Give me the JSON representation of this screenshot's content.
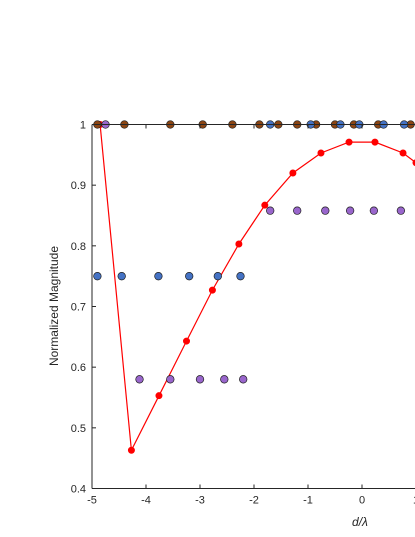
{
  "chart_data": {
    "type": "scatter",
    "title": "",
    "xlabel": "d/λ",
    "ylabel": "Normalized Magnitude",
    "xlim": [
      -5,
      1
    ],
    "ylim": [
      0.4,
      1
    ],
    "grid": false,
    "legend": "none",
    "x_ticks": [
      -5,
      -4,
      -3,
      -2,
      -1,
      0,
      1
    ],
    "y_ticks": [
      0.4,
      0.5,
      0.6,
      0.7,
      0.8,
      0.9,
      1
    ],
    "x_tick_labels": [
      "-5",
      "-4",
      "-3",
      "-2",
      "-1",
      "0",
      "1"
    ],
    "y_tick_labels": [
      "0.4",
      "0.5",
      "0.6",
      "0.7",
      "0.8",
      "0.9",
      "1"
    ],
    "series": [
      {
        "kind": "line-markers",
        "color": "#ff0000",
        "x": [
          -4.85,
          -4.27,
          -3.76,
          -3.25,
          -2.77,
          -2.28,
          -1.8,
          -1.28,
          -0.76,
          -0.24,
          0.24,
          0.76,
          1.0
        ],
        "y": [
          1.0,
          0.463,
          0.553,
          0.643,
          0.727,
          0.803,
          0.867,
          0.92,
          0.953,
          0.971,
          0.971,
          0.953,
          0.937
        ]
      },
      {
        "kind": "markers",
        "color": "#8b4513",
        "x": [
          -4.9,
          -4.4,
          -3.55,
          -2.95,
          -2.4,
          -1.9,
          -1.55,
          -1.2,
          -0.85,
          -0.5,
          -0.15,
          0.3,
          0.9
        ],
        "y": [
          1,
          1,
          1,
          1,
          1,
          1,
          1,
          1,
          1,
          1,
          1,
          1,
          1
        ]
      },
      {
        "kind": "markers",
        "color": "#4472c4",
        "x": [
          -4.9,
          -4.45,
          -3.77,
          -3.2,
          -2.67,
          -2.25,
          -1.7,
          -0.95,
          -0.4,
          -0.05,
          0.4,
          0.78
        ],
        "y": [
          0.75,
          0.75,
          0.75,
          0.75,
          0.75,
          0.75,
          1,
          1,
          1,
          1,
          1,
          1
        ]
      },
      {
        "kind": "markers",
        "color": "#9966cc",
        "x": [
          -4.75,
          -4.12,
          -3.55,
          -3.0,
          -2.55,
          -2.2,
          -1.7,
          -1.2,
          -0.68,
          -0.22,
          0.22,
          0.72
        ],
        "y": [
          1,
          0.58,
          0.58,
          0.58,
          0.58,
          0.58,
          0.858,
          0.858,
          0.858,
          0.858,
          0.858,
          0.858
        ]
      }
    ]
  }
}
